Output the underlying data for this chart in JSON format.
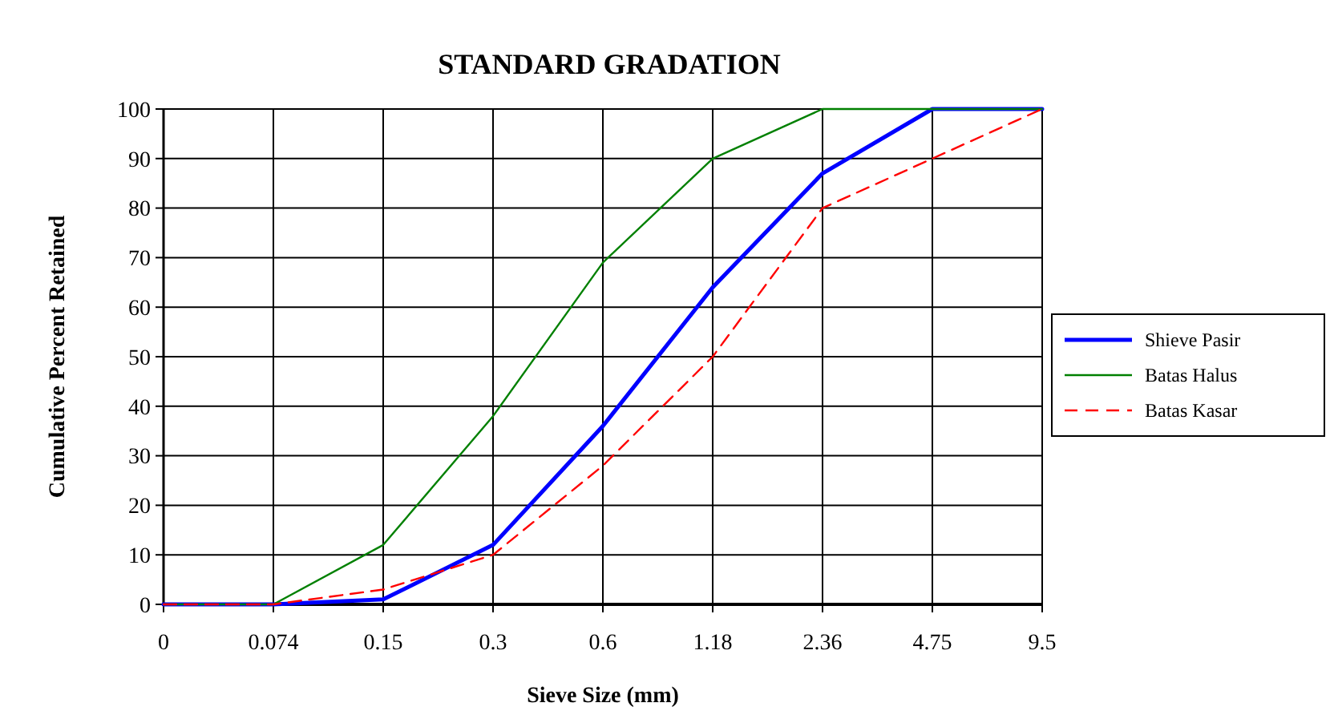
{
  "chart_data": {
    "type": "line",
    "title": "STANDARD GRADATION",
    "xlabel": "Sieve Size (mm)",
    "ylabel": "Cumulative Percent Retained",
    "categories": [
      "0",
      "0.074",
      "0.15",
      "0.3",
      "0.6",
      "1.18",
      "2.36",
      "4.75",
      "9.5"
    ],
    "series": [
      {
        "name": "Shieve Pasir",
        "color": "#0000ff",
        "values": [
          0,
          0,
          1,
          12,
          36,
          64,
          87,
          100,
          100
        ],
        "line_style": "solid"
      },
      {
        "name": "Batas Halus",
        "color": "#008000",
        "values": [
          0,
          0,
          12,
          38,
          69,
          90,
          100,
          100,
          100
        ],
        "line_style": "solid"
      },
      {
        "name": "Batas Kasar",
        "color": "#ff0000",
        "values": [
          0,
          0,
          3,
          10,
          28,
          50,
          80,
          90,
          100
        ],
        "line_style": "dashed"
      }
    ],
    "ylim": [
      0,
      100
    ],
    "yticks": [
      0,
      10,
      20,
      30,
      40,
      50,
      60,
      70,
      80,
      90,
      100
    ],
    "grid": true,
    "legend": "right",
    "marker": "none"
  }
}
